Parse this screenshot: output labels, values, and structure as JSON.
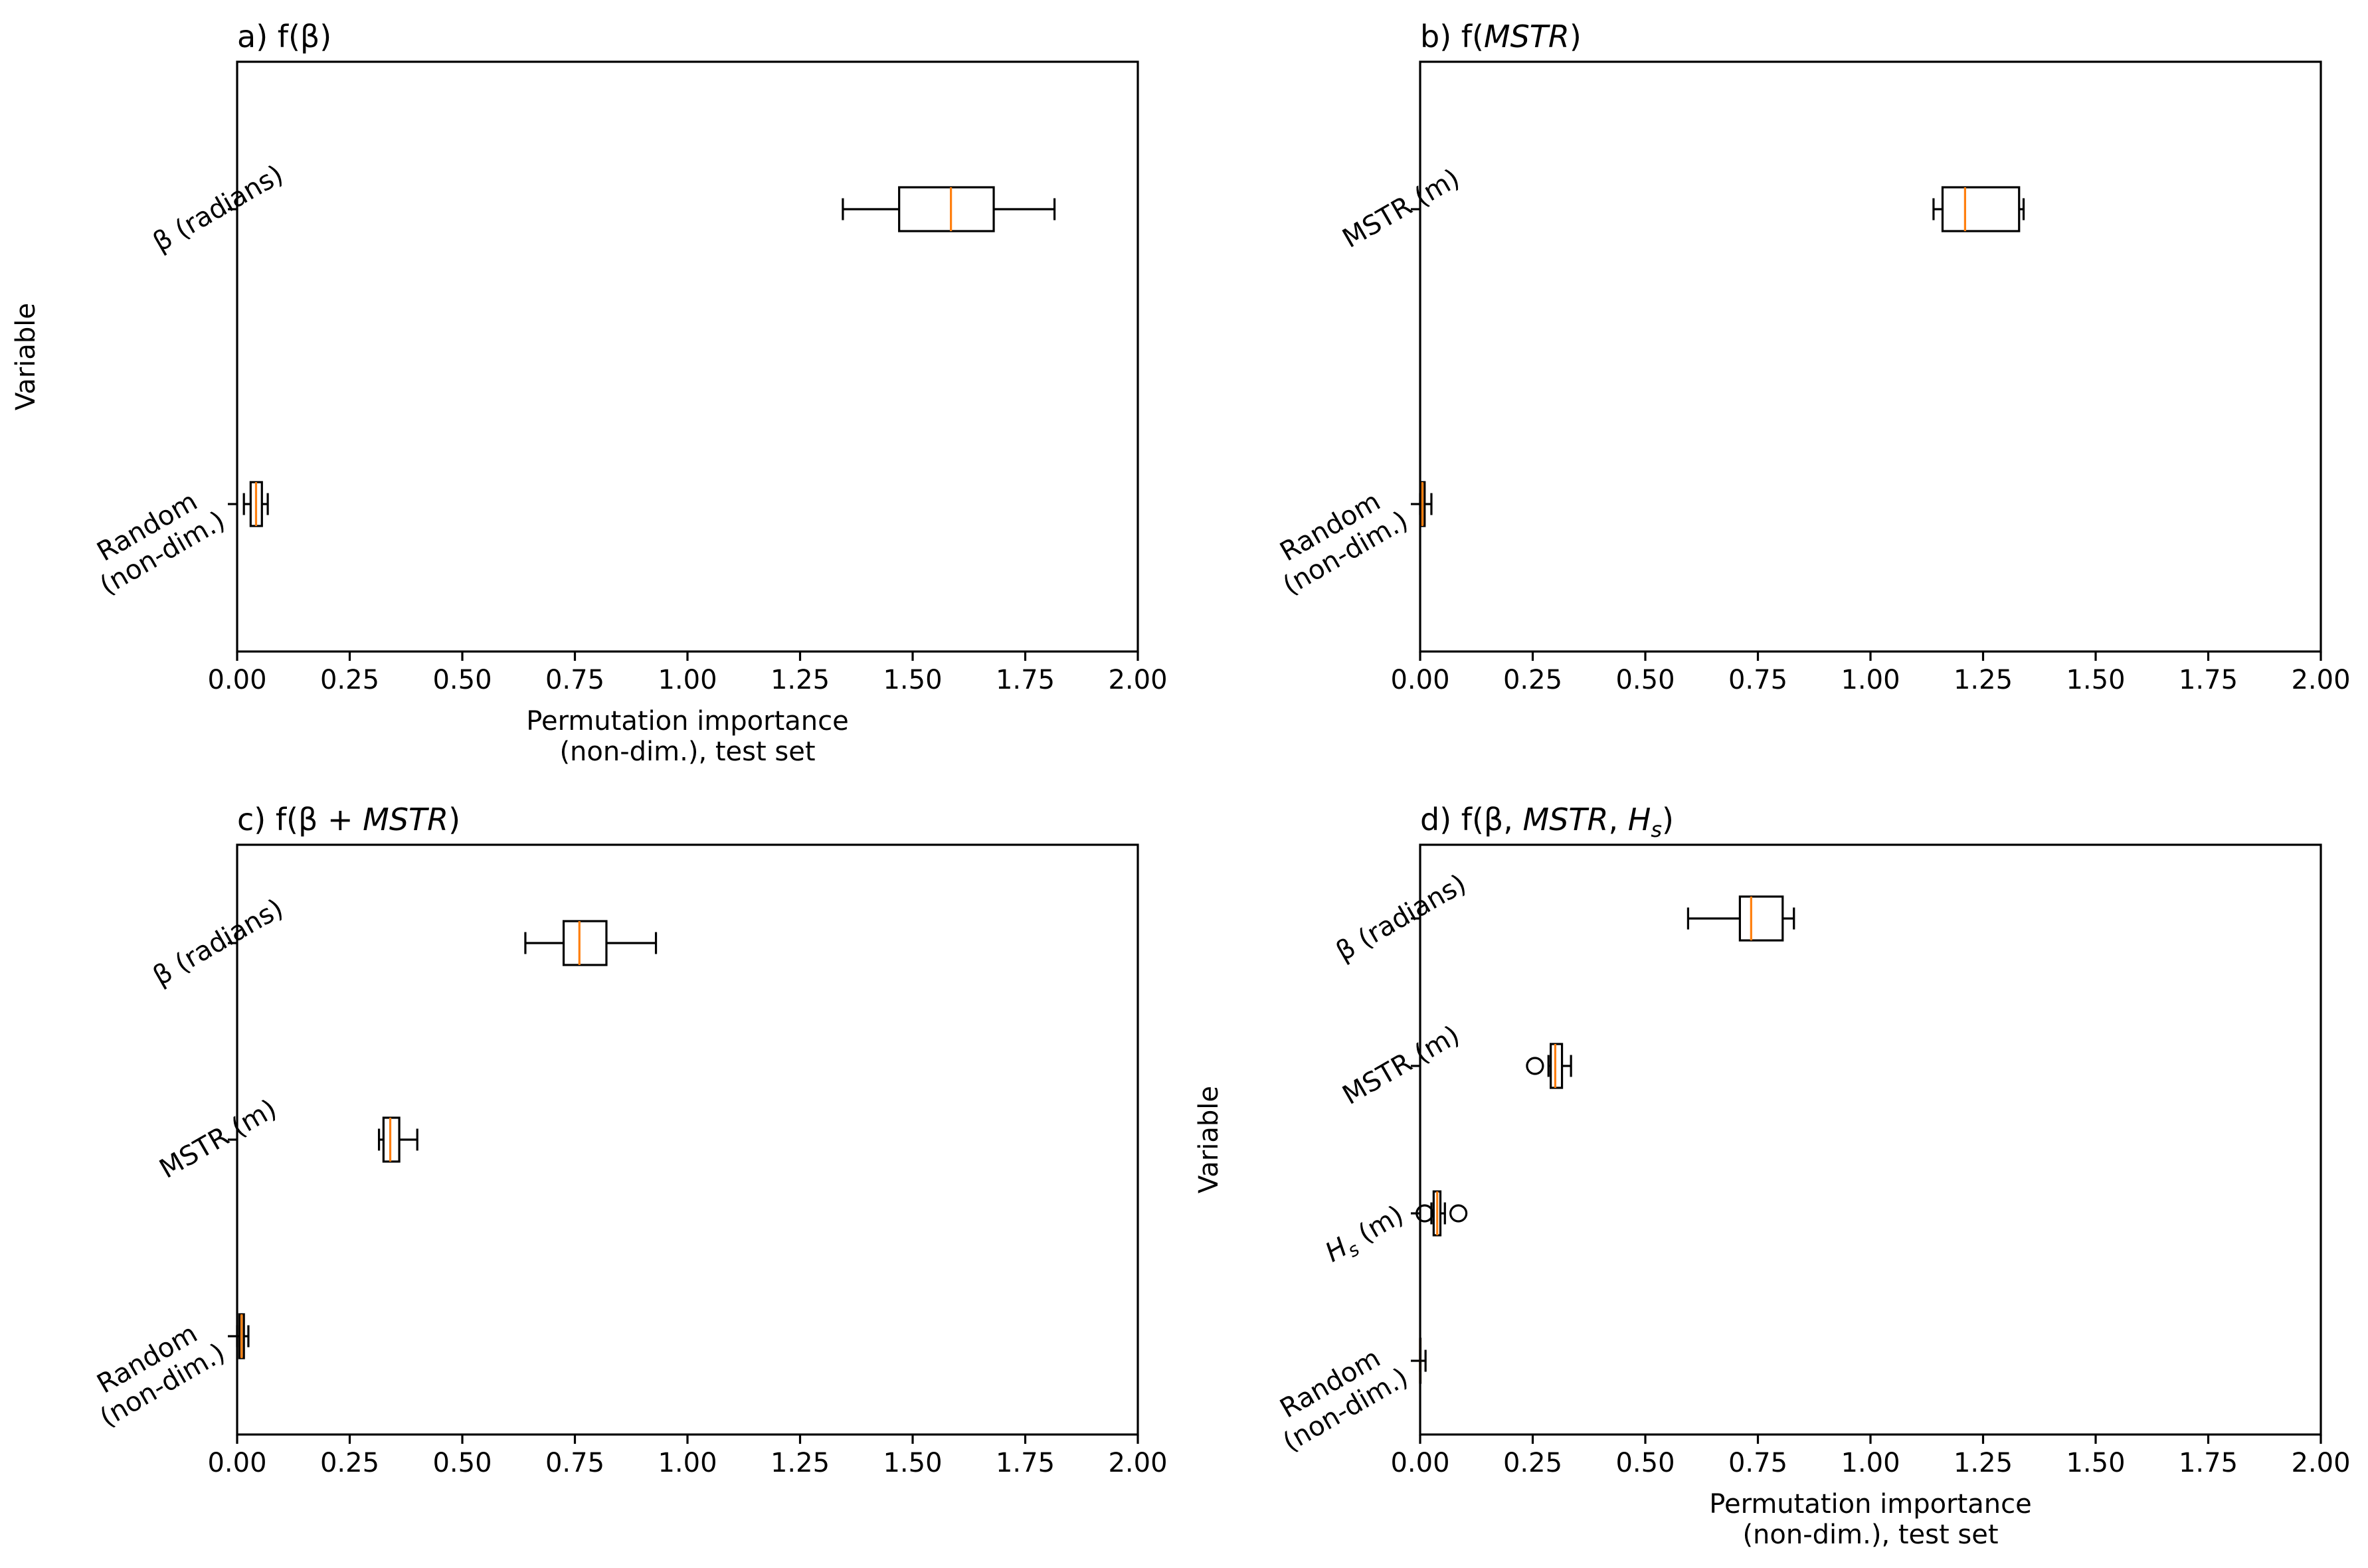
{
  "colors": {
    "box": "#000000",
    "median": "#ff7f0e",
    "background": "#ffffff"
  },
  "chart_data": [
    {
      "type": "box",
      "orientation": "horizontal",
      "title_parts": [
        {
          "t": "a) f(β)",
          "i": false
        }
      ],
      "xlabel_lines": [
        "Permutation importance",
        "(non-dim.), test set"
      ],
      "ylabel": "Variable",
      "xlim": [
        0,
        2
      ],
      "xticks": [
        "0.00",
        "0.25",
        "0.50",
        "0.75",
        "1.00",
        "1.25",
        "1.50",
        "1.75",
        "2.00"
      ],
      "categories": [
        {
          "lines": [
            "β (radians)"
          ]
        },
        {
          "lines": [
            "Random",
            "(non-dim.)"
          ]
        }
      ],
      "boxes": [
        {
          "whisker_low": 1.345,
          "q1": 1.47,
          "median": 1.585,
          "q3": 1.68,
          "whisker_high": 1.815,
          "outliers": []
        },
        {
          "whisker_low": 0.015,
          "q1": 0.03,
          "median": 0.042,
          "q3": 0.055,
          "whisker_high": 0.068,
          "outliers": []
        }
      ]
    },
    {
      "type": "box",
      "orientation": "horizontal",
      "title_parts": [
        {
          "t": "b) f(",
          "i": false
        },
        {
          "t": "MSTR",
          "i": true
        },
        {
          "t": ")",
          "i": false
        }
      ],
      "xlabel_lines": [],
      "ylabel": "",
      "xlim": [
        0,
        2
      ],
      "xticks": [
        "0.00",
        "0.25",
        "0.50",
        "0.75",
        "1.00",
        "1.25",
        "1.50",
        "1.75",
        "2.00"
      ],
      "categories": [
        {
          "lines": [
            "MSTR (m)"
          ]
        },
        {
          "lines": [
            "Random",
            "(non-dim.)"
          ]
        }
      ],
      "boxes": [
        {
          "whisker_low": 1.14,
          "q1": 1.16,
          "median": 1.21,
          "q3": 1.33,
          "whisker_high": 1.34,
          "outliers": []
        },
        {
          "whisker_low": 0.0,
          "q1": 0.002,
          "median": 0.005,
          "q3": 0.01,
          "whisker_high": 0.025,
          "outliers": []
        }
      ]
    },
    {
      "type": "box",
      "orientation": "horizontal",
      "title_parts": [
        {
          "t": "c) f(β + ",
          "i": false
        },
        {
          "t": "MSTR",
          "i": true
        },
        {
          "t": ")",
          "i": false
        }
      ],
      "xlabel_lines": [],
      "ylabel": "",
      "xlim": [
        0,
        2
      ],
      "xticks": [
        "0.00",
        "0.25",
        "0.50",
        "0.75",
        "1.00",
        "1.25",
        "1.50",
        "1.75",
        "2.00"
      ],
      "categories": [
        {
          "lines": [
            "β (radians)"
          ]
        },
        {
          "lines": [
            "MSTR (m)"
          ]
        },
        {
          "lines": [
            "Random",
            "(non-dim.)"
          ]
        }
      ],
      "boxes": [
        {
          "whisker_low": 0.64,
          "q1": 0.725,
          "median": 0.76,
          "q3": 0.82,
          "whisker_high": 0.93,
          "outliers": []
        },
        {
          "whisker_low": 0.315,
          "q1": 0.325,
          "median": 0.34,
          "q3": 0.36,
          "whisker_high": 0.4,
          "outliers": []
        },
        {
          "whisker_low": 0.0,
          "q1": 0.005,
          "median": 0.01,
          "q3": 0.015,
          "whisker_high": 0.025,
          "outliers": []
        }
      ]
    },
    {
      "type": "box",
      "orientation": "horizontal",
      "title_parts": [
        {
          "t": "d) f(β, ",
          "i": false
        },
        {
          "t": "MSTR",
          "i": true
        },
        {
          "t": ", ",
          "i": false
        },
        {
          "t": "H",
          "i": true
        },
        {
          "t": "s",
          "i": true,
          "sub": true
        },
        {
          "t": ")",
          "i": false
        }
      ],
      "xlabel_lines": [
        "Permutation importance",
        "(non-dim.), test set"
      ],
      "ylabel": "Variable",
      "xlim": [
        0,
        2
      ],
      "xticks": [
        "0.00",
        "0.25",
        "0.50",
        "0.75",
        "1.00",
        "1.25",
        "1.50",
        "1.75",
        "2.00"
      ],
      "categories": [
        {
          "lines": [
            "β (radians)"
          ]
        },
        {
          "lines": [
            "MSTR (m)"
          ]
        },
        {
          "parts": [
            {
              "t": "H",
              "i": true
            },
            {
              "t": "s",
              "i": true,
              "sub": true
            },
            {
              "t": " (m)",
              "i": false
            }
          ]
        },
        {
          "lines": [
            "Random",
            "(non-dim.)"
          ]
        }
      ],
      "boxes": [
        {
          "whisker_low": 0.595,
          "q1": 0.71,
          "median": 0.735,
          "q3": 0.805,
          "whisker_high": 0.83,
          "outliers": []
        },
        {
          "whisker_low": 0.285,
          "q1": 0.29,
          "median": 0.3,
          "q3": 0.315,
          "whisker_high": 0.335,
          "outliers": [
            0.255
          ]
        },
        {
          "whisker_low": 0.025,
          "q1": 0.03,
          "median": 0.038,
          "q3": 0.045,
          "whisker_high": 0.055,
          "outliers": [
            0.01,
            0.085
          ]
        },
        {
          "whisker_low": 0.0,
          "q1": 0.0,
          "median": 0.0,
          "q3": 0.0,
          "whisker_high": 0.012,
          "outliers": []
        }
      ]
    }
  ]
}
